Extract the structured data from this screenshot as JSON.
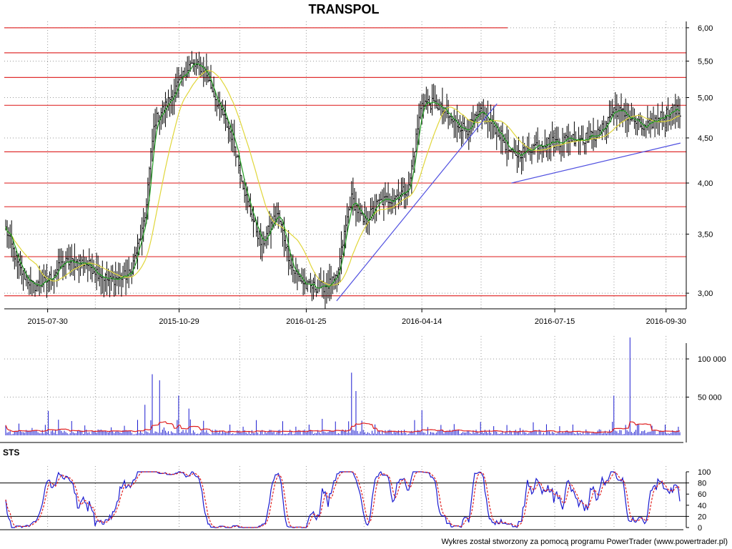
{
  "title": "TRANSPOL",
  "credit": "Wykres został stworzony za pomocą programu PowerTrader (www.powertrader.pl)",
  "colors": {
    "background": "#ffffff",
    "price_bar": "#000000",
    "ma_short": "#1f9a1f",
    "ma_long": "#e0d63a",
    "support_lines": "#e03030",
    "trend_lines": "#5050e0",
    "volume_bar": "#1a1ad0",
    "volume_avg": "#e02020",
    "stoch_k": "#1a1ad0",
    "stoch_d": "#e02020",
    "stoch_levels": "#000000",
    "grid": "#999999"
  },
  "chart_data": [
    {
      "type": "ohlc",
      "name": "price",
      "title": "TRANSPOL",
      "scale": "log",
      "ylim": [
        2.88,
        6.1
      ],
      "y_ticks": [
        "6,00",
        "5,50",
        "5,00",
        "4,50",
        "4,00",
        "3,50",
        "3,00"
      ],
      "y_tick_values": [
        6.0,
        5.5,
        5.0,
        4.5,
        4.0,
        3.5,
        3.0
      ],
      "x_ticks": [
        "2015-07-30",
        "2015-10-29",
        "2016-01-25",
        "2016-04-14",
        "2016-07-15",
        "2016-09-30"
      ],
      "grid": true,
      "close_path": [
        [
          "2015-07-01",
          3.55
        ],
        [
          "2015-07-10",
          3.2
        ],
        [
          "2015-07-20",
          3.05
        ],
        [
          "2015-07-30",
          3.1
        ],
        [
          "2015-08-10",
          3.25
        ],
        [
          "2015-08-25",
          3.25
        ],
        [
          "2015-09-10",
          3.1
        ],
        [
          "2015-09-25",
          3.15
        ],
        [
          "2015-10-05",
          3.6
        ],
        [
          "2015-10-12",
          4.7
        ],
        [
          "2015-10-20",
          4.9
        ],
        [
          "2015-10-29",
          5.2
        ],
        [
          "2015-11-05",
          5.45
        ],
        [
          "2015-11-15",
          5.4
        ],
        [
          "2015-11-25",
          4.9
        ],
        [
          "2015-12-05",
          4.5
        ],
        [
          "2015-12-15",
          3.8
        ],
        [
          "2015-12-25",
          3.4
        ],
        [
          "2016-01-05",
          3.7
        ],
        [
          "2016-01-15",
          3.2
        ],
        [
          "2016-01-25",
          3.05
        ],
        [
          "2016-02-05",
          3.05
        ],
        [
          "2016-02-15",
          3.1
        ],
        [
          "2016-02-25",
          3.85
        ],
        [
          "2016-03-05",
          3.6
        ],
        [
          "2016-03-15",
          3.8
        ],
        [
          "2016-03-25",
          3.85
        ],
        [
          "2016-04-05",
          3.95
        ],
        [
          "2016-04-14",
          4.95
        ],
        [
          "2016-04-25",
          4.9
        ],
        [
          "2016-05-05",
          4.7
        ],
        [
          "2016-05-15",
          4.6
        ],
        [
          "2016-05-25",
          4.8
        ],
        [
          "2016-06-05",
          4.6
        ],
        [
          "2016-06-15",
          4.3
        ],
        [
          "2016-06-25",
          4.35
        ],
        [
          "2016-07-05",
          4.45
        ],
        [
          "2016-07-15",
          4.45
        ],
        [
          "2016-07-25",
          4.5
        ],
        [
          "2016-08-05",
          4.5
        ],
        [
          "2016-08-15",
          4.55
        ],
        [
          "2016-08-25",
          4.85
        ],
        [
          "2016-09-05",
          4.75
        ],
        [
          "2016-09-15",
          4.6
        ],
        [
          "2016-09-25",
          4.75
        ],
        [
          "2016-10-05",
          4.85
        ],
        [
          "2016-10-10",
          4.8
        ]
      ],
      "horizontal_levels": [
        6.0,
        5.62,
        5.27,
        4.9,
        4.34,
        4.0,
        3.76,
        3.3,
        2.98
      ],
      "trend_lines": [
        {
          "from": [
            "2016-02-15",
            2.94
          ],
          "to": [
            "2016-06-05",
            4.92
          ]
        },
        {
          "from": [
            "2016-06-15",
            4.0
          ],
          "to": [
            "2016-10-10",
            4.44
          ]
        }
      ]
    },
    {
      "type": "bar",
      "name": "volume",
      "ylim": [
        0,
        130000
      ],
      "y_ticks": [
        "100 000",
        "50 000"
      ],
      "y_tick_values": [
        100000,
        50000
      ],
      "spikes": [
        [
          "2015-07-30",
          32000
        ],
        [
          "2015-10-05",
          40000
        ],
        [
          "2015-10-10",
          80000
        ],
        [
          "2015-10-15",
          72000
        ],
        [
          "2015-10-29",
          52000
        ],
        [
          "2015-11-05",
          35000
        ],
        [
          "2016-02-25",
          82000
        ],
        [
          "2016-02-28",
          58000
        ],
        [
          "2016-04-14",
          33000
        ],
        [
          "2016-08-25",
          52000
        ],
        [
          "2016-09-05",
          128000
        ],
        [
          "2016-09-10",
          15000
        ]
      ],
      "baseline": 4000
    },
    {
      "type": "line",
      "name": "STS",
      "ylim": [
        0,
        100
      ],
      "y_ticks": [
        "100",
        "80",
        "60",
        "40",
        "20",
        "0"
      ],
      "y_tick_values": [
        100,
        80,
        60,
        40,
        20,
        0
      ],
      "levels": [
        80,
        20
      ]
    }
  ]
}
